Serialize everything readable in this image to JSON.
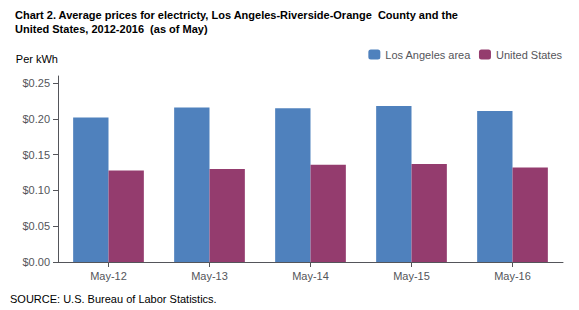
{
  "chart_data": {
    "type": "bar",
    "title": "Chart 2. Average prices for electricty, Los Angeles-Riverside-Orange  County and the",
    "subtitle": "United States, 2012-2016  (as of May)",
    "ylabel": "Per kWh",
    "annotations": [
      "SOURCE: U.S. Bureau of Labor Statistics."
    ],
    "categories": [
      "May-12",
      "May-13",
      "May-14",
      "May-15",
      "May-16"
    ],
    "series": [
      {
        "name": "Los Angeles area",
        "color": "#4F81BD",
        "values": [
          0.202,
          0.216,
          0.215,
          0.218,
          0.211
        ]
      },
      {
        "name": "United States",
        "color": "#943C6E",
        "values": [
          0.128,
          0.13,
          0.136,
          0.137,
          0.132
        ]
      }
    ],
    "ylim": [
      0.0,
      0.26
    ],
    "yticks": [
      {
        "value": 0.0,
        "label": "$0.00"
      },
      {
        "value": 0.05,
        "label": "$0.05"
      },
      {
        "value": 0.1,
        "label": "$0.10"
      },
      {
        "value": 0.15,
        "label": "$0.15"
      },
      {
        "value": 0.2,
        "label": "$0.20"
      },
      {
        "value": 0.25,
        "label": "$0.25"
      }
    ],
    "grid": false,
    "legend": "upper right"
  }
}
